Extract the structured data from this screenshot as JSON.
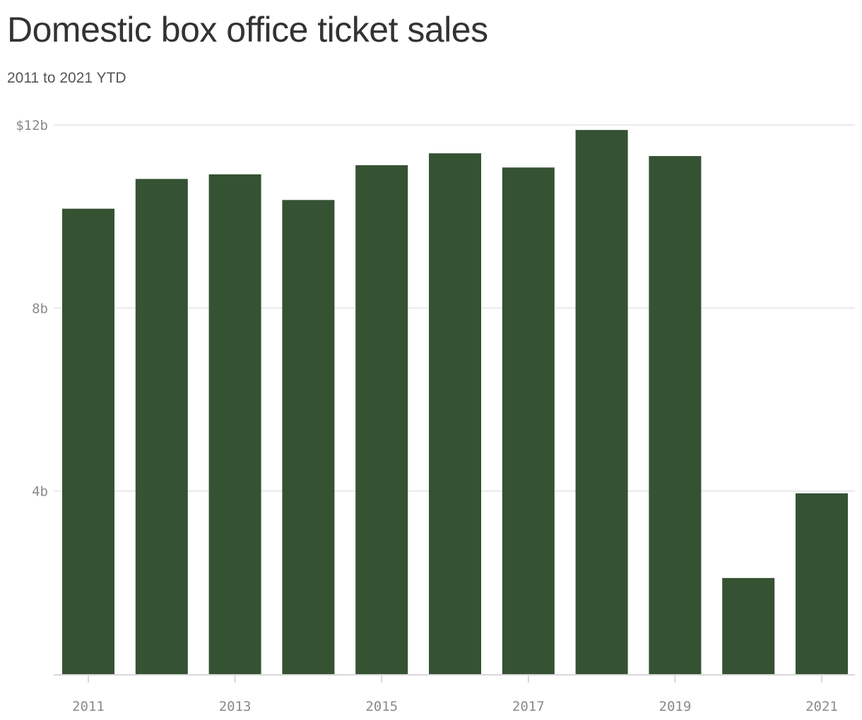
{
  "header": {
    "title": "Domestic box office ticket sales",
    "subtitle": "2011 to 2021 YTD"
  },
  "colors": {
    "bar": "#355233",
    "grid": "#e3e3e3",
    "axis": "#cccccc",
    "tick_text": "#8a8a8a"
  },
  "chart_data": {
    "type": "bar",
    "categories": [
      "2011",
      "2012",
      "2013",
      "2014",
      "2015",
      "2016",
      "2017",
      "2018",
      "2019",
      "2020",
      "2021"
    ],
    "values": [
      10.17,
      10.82,
      10.92,
      10.36,
      11.12,
      11.38,
      11.07,
      11.89,
      11.32,
      2.1,
      3.95
    ],
    "x_tick_labels": [
      "2011",
      "2013",
      "2015",
      "2017",
      "2019",
      "2021"
    ],
    "y_ticks": [
      4,
      8,
      12
    ],
    "y_tick_labels": [
      "4b",
      "8b",
      "$12b"
    ],
    "ylim": [
      0,
      12
    ],
    "grid": true,
    "legend": "none"
  }
}
